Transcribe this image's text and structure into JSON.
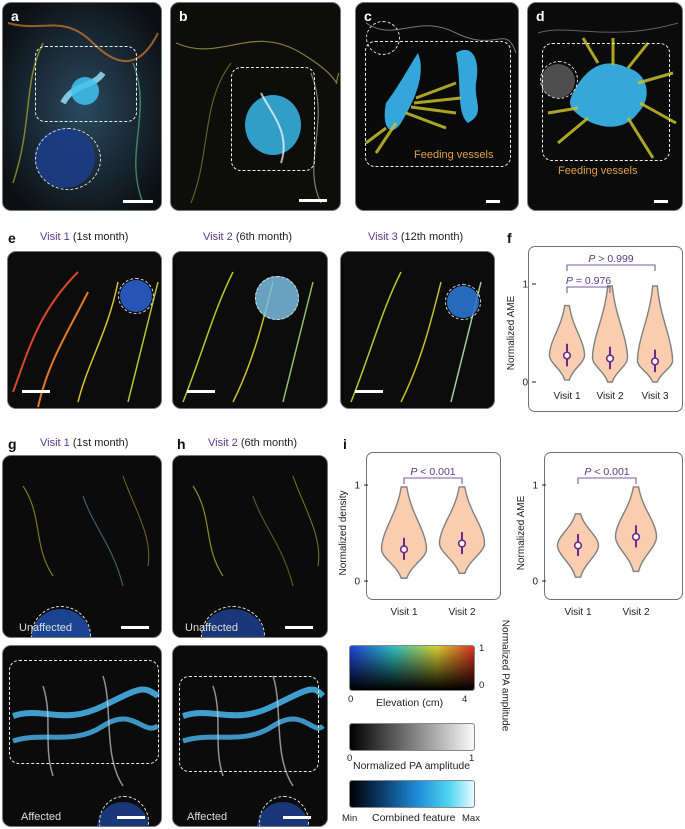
{
  "panels": {
    "a": "a",
    "b": "b",
    "c": "c",
    "d": "d",
    "e": "e",
    "f": "f",
    "g": "g",
    "h": "h",
    "i": "i"
  },
  "annotations": {
    "feeding_vessels_c": "Feeding vessels",
    "feeding_vessels_d": "Feeding vessels"
  },
  "row_e": {
    "visit1": "Visit 1",
    "visit1_time": " (1st month)",
    "visit2": "Visit 2",
    "visit2_time": " (6th month)",
    "visit3": "Visit 3",
    "visit3_time": " (12th month)"
  },
  "row_gh": {
    "g_visit": "Visit 1",
    "g_time": " (1st month)",
    "h_visit": "Visit 2",
    "h_time": " (6th month)",
    "unaffected": "Unaffected",
    "affected": "Affected"
  },
  "chart_data": [
    {
      "id": "f",
      "type": "violin",
      "categories": [
        "Visit 1",
        "Visit 2",
        "Visit 3"
      ],
      "ylabel": "Normalized AME",
      "ylim": [
        0,
        1
      ],
      "yticks": [
        "0",
        "1"
      ],
      "medians": [
        0.27,
        0.24,
        0.21
      ],
      "ranges": [
        [
          0.02,
          0.78
        ],
        [
          0.0,
          0.98
        ],
        [
          0.0,
          0.98
        ]
      ],
      "comparisons": [
        {
          "from": "Visit 1",
          "to": "Visit 2",
          "label_pre": "P",
          "label_post": " = 0.976"
        },
        {
          "from": "Visit 1",
          "to": "Visit 3",
          "label_pre": "P",
          "label_post": " > 0.999"
        }
      ]
    },
    {
      "id": "i-left",
      "type": "violin",
      "categories": [
        "Visit 1",
        "Visit 2"
      ],
      "ylabel": "Normalized density",
      "ylim": [
        0,
        1
      ],
      "yticks": [
        "0",
        "1"
      ],
      "medians": [
        0.33,
        0.39
      ],
      "ranges": [
        [
          0.03,
          0.98
        ],
        [
          0.08,
          0.98
        ]
      ],
      "comparisons": [
        {
          "from": "Visit 1",
          "to": "Visit 2",
          "label_pre": "P",
          "label_post": " < 0.001"
        }
      ]
    },
    {
      "id": "i-right",
      "type": "violin",
      "categories": [
        "Visit 1",
        "Visit 2"
      ],
      "ylabel": "Normalized AME",
      "ylim": [
        0,
        1
      ],
      "yticks": [
        "0",
        "1"
      ],
      "medians": [
        0.37,
        0.46
      ],
      "ranges": [
        [
          0.04,
          0.7
        ],
        [
          0.1,
          0.98
        ]
      ],
      "comparisons": [
        {
          "from": "Visit 1",
          "to": "Visit 2",
          "label_pre": "P",
          "label_post": " < 0.001"
        }
      ]
    }
  ],
  "colorbars": {
    "elevation": {
      "label": "Elevation (cm)",
      "min": "0",
      "max": "4",
      "side_title": "Normalized PA amplitude",
      "side_top": "1",
      "side_bottom": "0"
    },
    "pa": {
      "label": "Normalized PA amplitude",
      "min": "0",
      "max": "1"
    },
    "combined": {
      "label": "Combined feature",
      "min": "Min",
      "max": "Max"
    }
  },
  "colors": {
    "violin_fill": "#f8cdb0",
    "violin_stroke": "#808080",
    "median_line": "#6a2a8a",
    "accent": "#5a3a8a"
  }
}
